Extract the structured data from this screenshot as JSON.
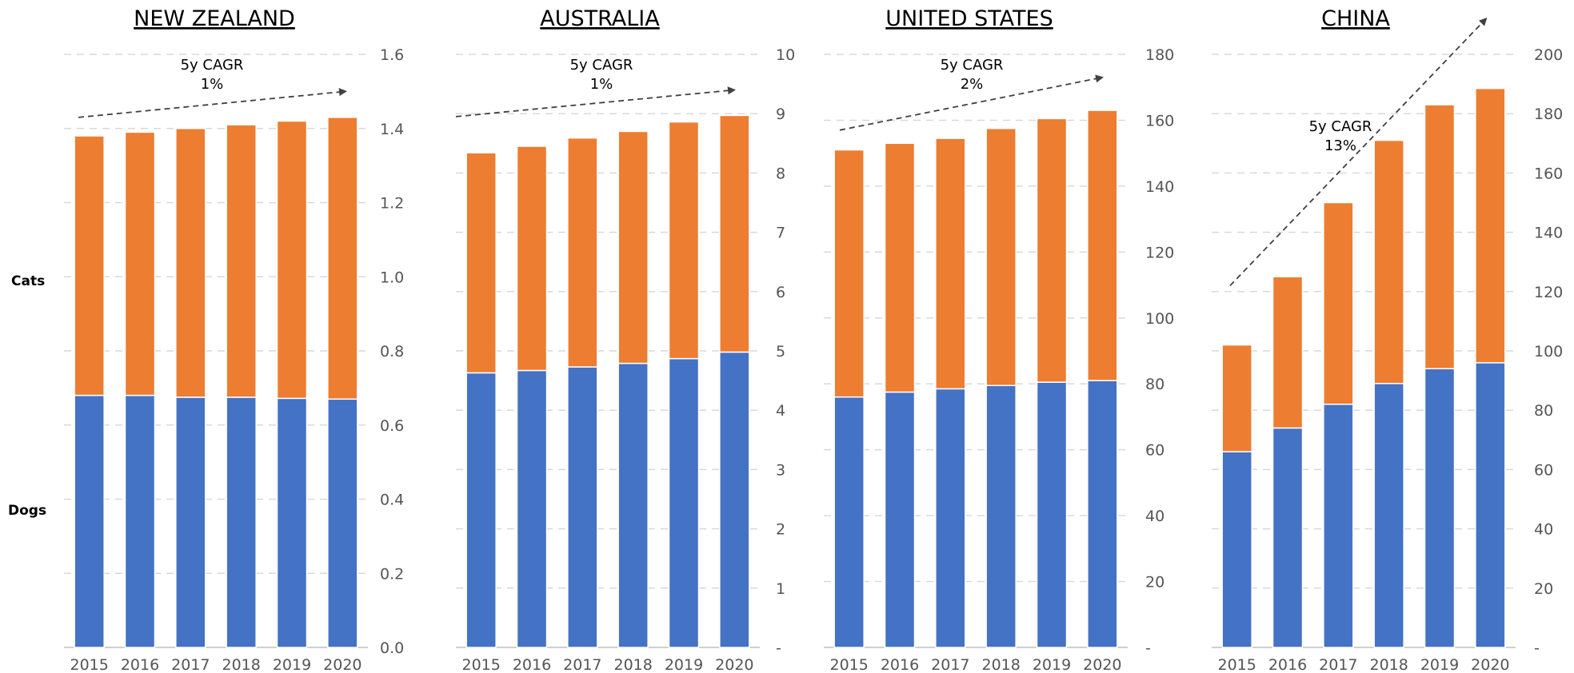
{
  "side_labels": {
    "upper": "Cats",
    "lower": "Dogs"
  },
  "colors": {
    "dogs": "#4472c4",
    "cats": "#ed7d31",
    "grid": "#d9d9d9",
    "axis": "#bfbfbf",
    "arrow": "#404040"
  },
  "chart_data": [
    {
      "type": "bar",
      "stacked": true,
      "title": "NEW ZEALAND",
      "categories": [
        "2015",
        "2016",
        "2017",
        "2018",
        "2019",
        "2020"
      ],
      "series": [
        {
          "name": "Dogs",
          "values": [
            0.68,
            0.68,
            0.675,
            0.675,
            0.672,
            0.67
          ]
        },
        {
          "name": "Cats",
          "values": [
            0.7,
            0.71,
            0.725,
            0.735,
            0.748,
            0.76
          ]
        }
      ],
      "ylim": [
        0,
        1.6
      ],
      "yticks": [
        0,
        0.2,
        0.4,
        0.6,
        0.8,
        1.0,
        1.2,
        1.4,
        1.6
      ],
      "ytick_labels": [
        "0.0",
        "0.2",
        "0.4",
        "0.6",
        "0.8",
        "1.0",
        "1.2",
        "1.4",
        "1.6"
      ],
      "annotation": {
        "lines": [
          "5y CAGR",
          "1%"
        ],
        "arrow_from_y": 1.43,
        "arrow_to_y": 1.5
      },
      "grid": true
    },
    {
      "type": "bar",
      "stacked": true,
      "title": "AUSTRALIA",
      "categories": [
        "2015",
        "2016",
        "2017",
        "2018",
        "2019",
        "2020"
      ],
      "series": [
        {
          "name": "Dogs",
          "values": [
            4.63,
            4.67,
            4.73,
            4.79,
            4.87,
            4.98
          ]
        },
        {
          "name": "Cats",
          "values": [
            3.71,
            3.78,
            3.86,
            3.91,
            3.99,
            3.99
          ]
        }
      ],
      "ylim": [
        0,
        10
      ],
      "yticks": [
        0,
        1,
        2,
        3,
        4,
        5,
        6,
        7,
        8,
        9,
        10
      ],
      "ytick_labels": [
        "-",
        "1",
        "2",
        "3",
        "4",
        "5",
        "6",
        "7",
        "8",
        "9",
        "10"
      ],
      "annotation": {
        "lines": [
          "5y CAGR",
          "1%"
        ],
        "arrow_from_y": 8.95,
        "arrow_to_y": 9.4
      },
      "grid": true
    },
    {
      "type": "bar",
      "stacked": true,
      "title": "UNITED STATES",
      "categories": [
        "2015",
        "2016",
        "2017",
        "2018",
        "2019",
        "2020"
      ],
      "series": [
        {
          "name": "Dogs",
          "values": [
            76,
            77.5,
            78.5,
            79.5,
            80.5,
            81
          ]
        },
        {
          "name": "Cats",
          "values": [
            75,
            75.5,
            76,
            78,
            80,
            82
          ]
        }
      ],
      "ylim": [
        0,
        180
      ],
      "yticks": [
        0,
        20,
        40,
        60,
        80,
        100,
        120,
        140,
        160,
        180
      ],
      "ytick_labels": [
        "-",
        "20",
        "40",
        "60",
        "80",
        "100",
        "120",
        "140",
        "160",
        "180"
      ],
      "annotation": {
        "lines": [
          "5y CAGR",
          "2%"
        ],
        "arrow_from_y": 157,
        "arrow_to_y": 173
      },
      "grid": true
    },
    {
      "type": "bar",
      "stacked": true,
      "title": "CHINA",
      "categories": [
        "2015",
        "2016",
        "2017",
        "2018",
        "2019",
        "2020"
      ],
      "series": [
        {
          "name": "Dogs",
          "values": [
            66,
            74,
            82,
            89,
            94,
            96
          ]
        },
        {
          "name": "Cats",
          "values": [
            36,
            51,
            68,
            82,
            89,
            92.5
          ]
        }
      ],
      "ylim": [
        0,
        200
      ],
      "yticks": [
        0,
        20,
        40,
        60,
        80,
        100,
        120,
        140,
        160,
        180,
        200
      ],
      "ytick_labels": [
        "-",
        "20",
        "40",
        "60",
        "80",
        "100",
        "120",
        "140",
        "160",
        "180",
        "200"
      ],
      "annotation": {
        "lines": [
          "5y CAGR",
          "13%"
        ],
        "arrow_from_y": 122,
        "arrow_to_y": 212
      },
      "grid": true
    }
  ]
}
